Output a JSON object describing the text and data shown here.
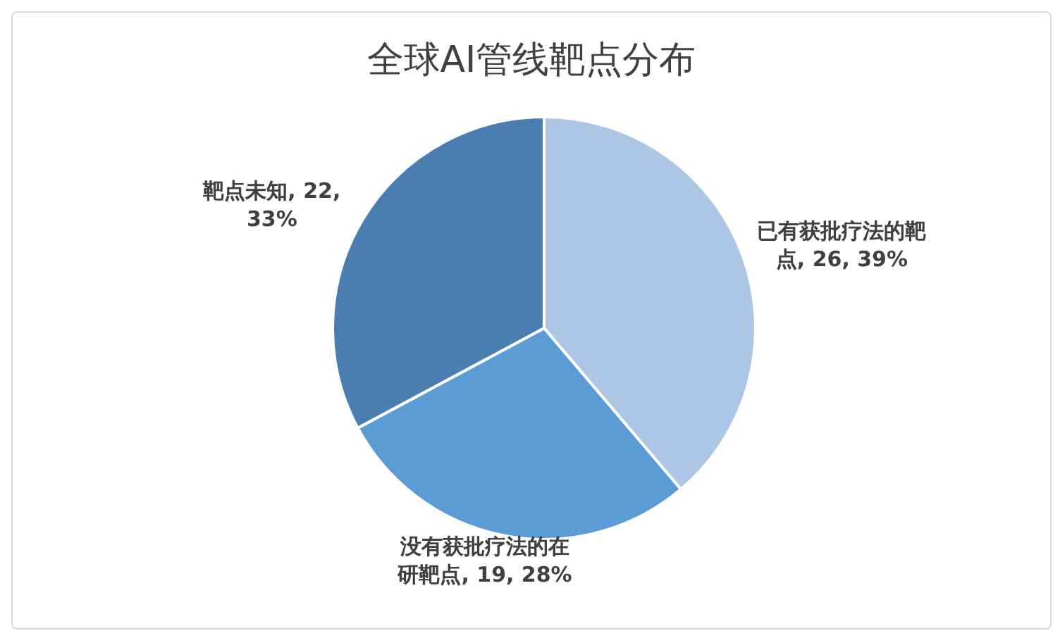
{
  "chart_data": {
    "type": "pie",
    "title": "全球AI管线靶点分布",
    "categories": [
      "已有获批疗法的靶点",
      "没有获批疗法的在研靶点",
      "靶点未知"
    ],
    "values": [
      26,
      19,
      22
    ],
    "value_labels": [
      "26, 39%",
      "19, 28%",
      "22, 33%"
    ],
    "colors": [
      "#adc6e6",
      "#5b9bd6",
      "#4a7eb1"
    ],
    "legend": false
  }
}
